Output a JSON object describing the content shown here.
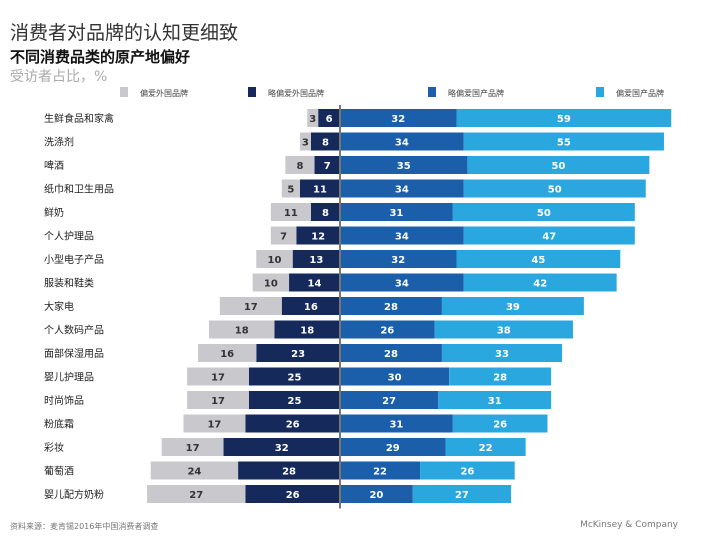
{
  "header": {
    "title": "消费者对品牌的认知更细致",
    "subtitle": "不同消费品类的原产地偏好",
    "unit": "受访者占比，%"
  },
  "footer": {
    "source": "资料来源：麦肯锡2016年中国消费者调查",
    "brand": "McKinsey & Company"
  },
  "colors": {
    "prefer_foreign": "#c9c9cd",
    "slightly_foreign": "#15295a",
    "slightly_domestic": "#1b5ea9",
    "prefer_domestic": "#2ba7df"
  },
  "chart_data": {
    "type": "bar",
    "orientation": "horizontal-diverging",
    "categories": [
      "生鲜食品和家禽",
      "洗涤剂",
      "啤酒",
      "纸巾和卫生用品",
      "鲜奶",
      "个人护理品",
      "小型电子产品",
      "服装和鞋类",
      "大家电",
      "个人数码产品",
      "面部保湿用品",
      "婴儿护理品",
      "时尚饰品",
      "粉底霜",
      "彩妆",
      "葡萄酒",
      "婴儿配方奶粉"
    ],
    "series": [
      {
        "name": "偏爱外国品牌",
        "side": "left",
        "values": [
          3,
          3,
          8,
          5,
          11,
          7,
          10,
          10,
          17,
          18,
          16,
          17,
          17,
          17,
          17,
          24,
          27
        ]
      },
      {
        "name": "略偏爱外国品牌",
        "side": "left",
        "values": [
          6,
          8,
          7,
          11,
          8,
          12,
          13,
          14,
          16,
          18,
          23,
          25,
          25,
          26,
          32,
          28,
          26
        ]
      },
      {
        "name": "略偏爱国产品牌",
        "side": "right",
        "values": [
          32,
          34,
          35,
          34,
          31,
          34,
          32,
          34,
          28,
          26,
          28,
          30,
          27,
          31,
          29,
          22,
          20
        ]
      },
      {
        "name": "偏爱国产品牌",
        "side": "right",
        "values": [
          59,
          55,
          50,
          50,
          50,
          47,
          45,
          42,
          39,
          38,
          33,
          28,
          31,
          26,
          22,
          26,
          27
        ]
      }
    ],
    "legend": "top",
    "grid": false
  }
}
